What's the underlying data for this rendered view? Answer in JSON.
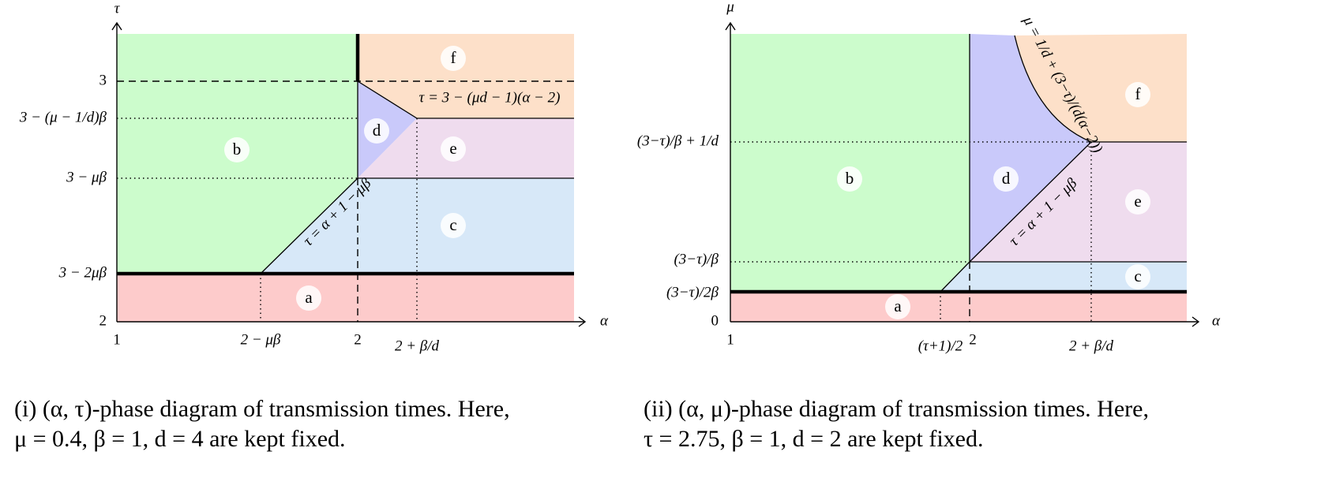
{
  "panels": [
    {
      "x_axis_label": "α",
      "y_axis_label": "τ",
      "x_ticks": [
        "1",
        "2 − μβ",
        "2",
        "2 + β/d"
      ],
      "y_ticks": [
        "2",
        "3 − 2μβ",
        "3 − μβ",
        "3 − (μ − 1/d)β",
        "3"
      ],
      "regions": [
        "a",
        "b",
        "c",
        "d",
        "e",
        "f"
      ],
      "curve_labels": [
        "τ = 3 − (μd − 1)(α − 2)",
        "τ = α + 1 − μβ"
      ],
      "caption": [
        "(i) (α, τ)-phase diagram of transmission times. Here,",
        "μ = 0.4, β = 1, d = 4 are kept fixed."
      ]
    },
    {
      "x_axis_label": "α",
      "y_axis_label": "μ",
      "x_ticks": [
        "1",
        "(τ+1)/2",
        "2",
        "2 + β/d"
      ],
      "y_ticks": [
        "0",
        "(3−τ)/2β",
        "(3−τ)/β",
        "(3−τ)/β + 1/d"
      ],
      "regions": [
        "a",
        "b",
        "c",
        "d",
        "e",
        "f"
      ],
      "curve_labels": [
        "μ = 1/d + (3−τ)/(d(α−2))",
        "τ = α + 1 − μβ"
      ],
      "caption": [
        "(ii) (α, μ)-phase diagram of transmission times. Here,",
        "τ = 2.75, β = 1, d = 2 are kept fixed."
      ]
    }
  ]
}
